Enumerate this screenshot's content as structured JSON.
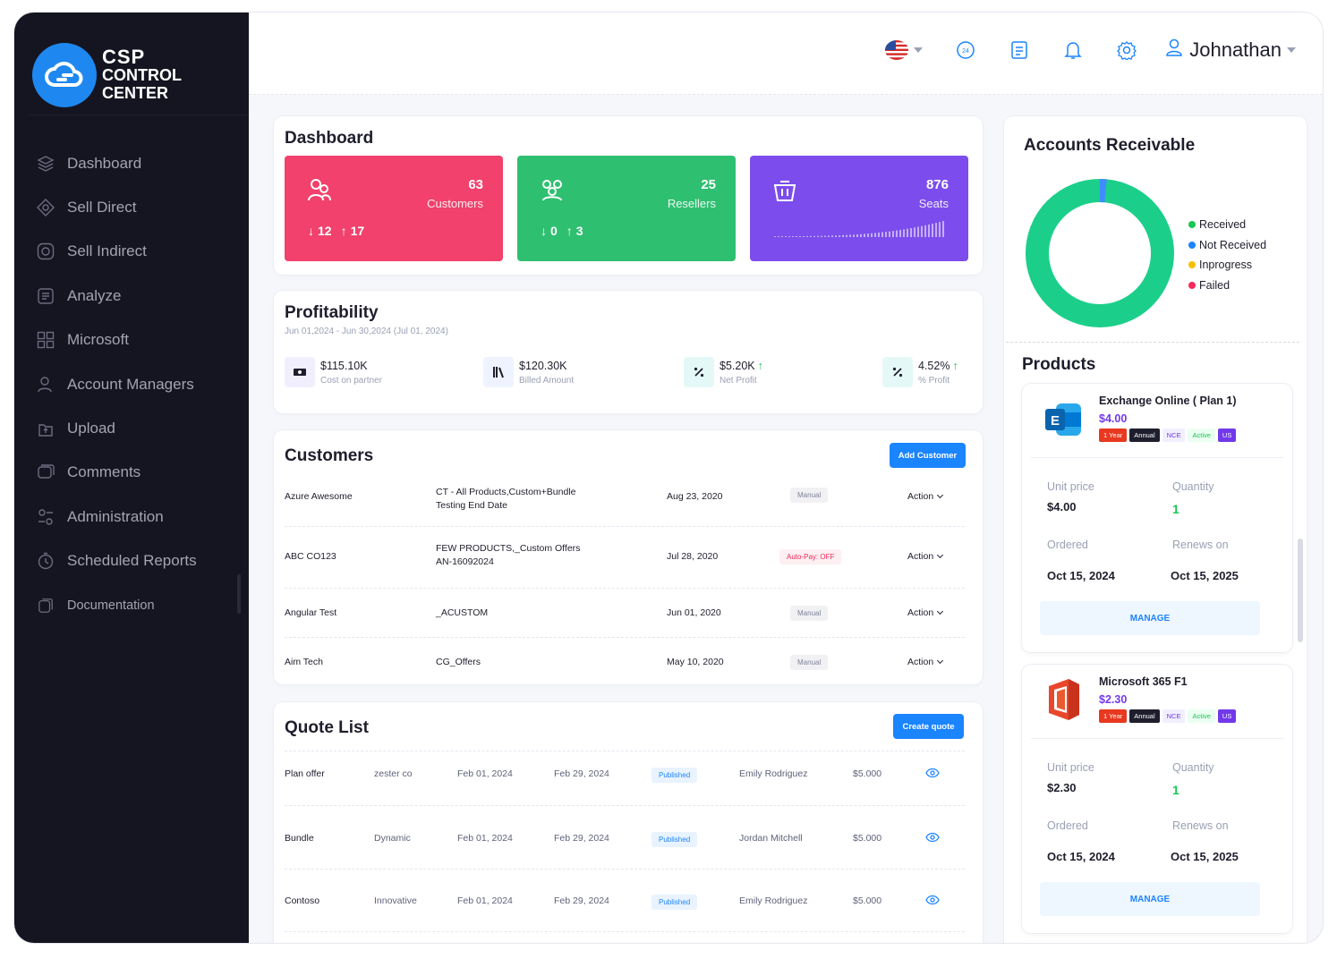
{
  "app": {
    "line1": "CSP",
    "line2": "CONTROL",
    "line3": "CENTER"
  },
  "nav": [
    {
      "label": "Dashboard",
      "icon": "dashboard-icon"
    },
    {
      "label": "Sell Direct",
      "icon": "sell-direct-icon"
    },
    {
      "label": "Sell Indirect",
      "icon": "sell-indirect-icon"
    },
    {
      "label": "Analyze",
      "icon": "analyze-icon"
    },
    {
      "label": "Microsoft",
      "icon": "microsoft-icon"
    },
    {
      "label": "Account Managers",
      "icon": "account-managers-icon"
    },
    {
      "label": "Upload",
      "icon": "upload-icon"
    },
    {
      "label": "Comments",
      "icon": "comments-icon"
    },
    {
      "label": "Administration",
      "icon": "administration-icon"
    },
    {
      "label": "Scheduled Reports",
      "icon": "scheduled-reports-icon"
    },
    {
      "label": "Documentation",
      "icon": "documentation-icon"
    }
  ],
  "header": {
    "user_name": "Johnathan"
  },
  "dashboard": {
    "title": "Dashboard",
    "customers": {
      "count": "63",
      "label": "Customers",
      "down": "12",
      "up": "17"
    },
    "resellers": {
      "count": "25",
      "label": "Resellers",
      "down": "0",
      "up": "3"
    },
    "seats": {
      "count": "876",
      "label": "Seats"
    }
  },
  "profitability": {
    "title": "Profitability",
    "range": "Jun 01,2024 - Jun 30,2024 (Jul 01, 2024)",
    "items": [
      {
        "value": "$115.10K",
        "label": "Cost on partner"
      },
      {
        "value": "$120.30K",
        "label": "Billed Amount"
      },
      {
        "value": "$5.20K",
        "label": "Net Profit"
      },
      {
        "value": "4.52%",
        "label": "% Profit"
      }
    ]
  },
  "customers": {
    "title": "Customers",
    "add_label": "Add Customer",
    "rows": [
      {
        "name": "Azure Awesome",
        "offer1": "CT - All Products,Custom+Bundle",
        "offer2": "Testing End Date",
        "date": "Aug 23, 2020",
        "badge": "Manual",
        "action": "Action"
      },
      {
        "name": "ABC CO123",
        "offer1": "FEW PRODUCTS,_Custom Offers",
        "offer2": "AN-16092024",
        "date": "Jul 28, 2020",
        "badge": "Auto-Pay: OFF",
        "action": "Action"
      },
      {
        "name": "Angular Test",
        "offer1": "_ACUSTOM",
        "offer2": "",
        "date": "Jun 01, 2020",
        "badge": "Manual",
        "action": "Action"
      },
      {
        "name": "Aim Tech",
        "offer1": "CG_Offers",
        "offer2": "",
        "date": "May 10, 2020",
        "badge": "Manual",
        "action": "Action"
      }
    ]
  },
  "quotes": {
    "title": "Quote List",
    "create_label": "Create quote",
    "rows": [
      {
        "name": "Plan offer",
        "customer": "zester co",
        "start": "Feb 01, 2024",
        "end": "Feb 29, 2024",
        "status": "Published",
        "owner": "Emily Rodriguez",
        "amount": "$5.000"
      },
      {
        "name": "Bundle",
        "customer": "Dynamic",
        "start": "Feb 01, 2024",
        "end": "Feb 29, 2024",
        "status": "Published",
        "owner": "Jordan Mitchell",
        "amount": "$5.000"
      },
      {
        "name": "Contoso",
        "customer": "Innovative",
        "start": "Feb 01, 2024",
        "end": "Feb 29, 2024",
        "status": "Published",
        "owner": "Emily Rodriguez",
        "amount": "$5.000"
      }
    ]
  },
  "receivable": {
    "title": "Accounts Receivable",
    "legend": [
      {
        "label": "Received",
        "color": "#17c653"
      },
      {
        "label": "Not Received",
        "color": "#1b84ff"
      },
      {
        "label": "Inprogress",
        "color": "#f6c000"
      },
      {
        "label": "Failed",
        "color": "#f8285a"
      }
    ],
    "shares": {
      "received": 0.985,
      "not_received": 0.015
    }
  },
  "products": {
    "title": "Products",
    "items": [
      {
        "name": "Exchange Online ( Plan 1)",
        "price": "$4.00",
        "tags": [
          "1 Year",
          "Annual",
          "NCE",
          "Active",
          "US"
        ],
        "unit_price_label": "Unit price",
        "unit_price": "$4.00",
        "quantity_label": "Quantity",
        "quantity": "1",
        "ordered_label": "Ordered",
        "ordered": "Oct 15, 2024",
        "renews_label": "Renews on",
        "renews": "Oct 15, 2025",
        "manage": "MANAGE"
      },
      {
        "name": "Microsoft 365 F1",
        "price": "$2.30",
        "tags": [
          "1 Year",
          "Annual",
          "NCE",
          "Active",
          "US"
        ],
        "unit_price_label": "Unit price",
        "unit_price": "$2.30",
        "quantity_label": "Quantity",
        "quantity": "1",
        "ordered_label": "Ordered",
        "ordered": "Oct 15, 2024",
        "renews_label": "Renews on",
        "renews": "Oct 15, 2025",
        "manage": "MANAGE"
      }
    ]
  }
}
